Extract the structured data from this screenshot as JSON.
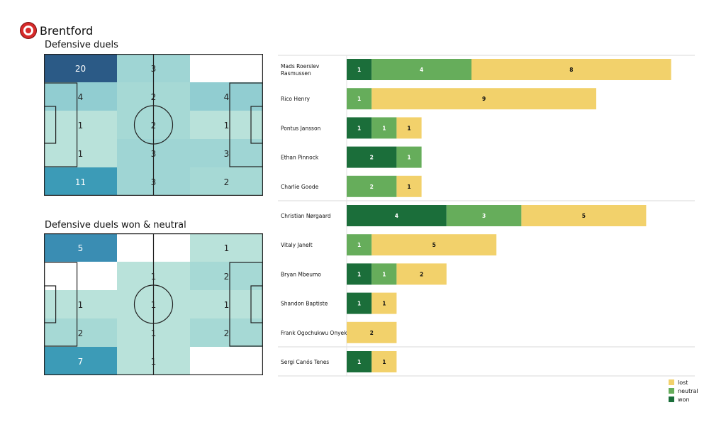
{
  "team": {
    "name": "Brentford",
    "logo_icon": "brentford-crest-icon"
  },
  "colors": {
    "won": "#1b6e3a",
    "neutral": "#66ad5b",
    "lost": "#f2d16b"
  },
  "pitches": [
    {
      "title": "Defensive duels",
      "grid": [
        [
          20,
          3,
          0
        ],
        [
          4,
          2,
          4
        ],
        [
          1,
          2,
          1
        ],
        [
          1,
          3,
          3
        ],
        [
          11,
          3,
          2
        ]
      ],
      "labels": [
        [
          "20",
          "3",
          ""
        ],
        [
          "4",
          "2",
          "4"
        ],
        [
          "1",
          "2",
          "1"
        ],
        [
          "1",
          "3",
          "3"
        ],
        [
          "11",
          "3",
          "2"
        ]
      ]
    },
    {
      "title": "Defensive duels won & neutral",
      "grid": [
        [
          5,
          0,
          1
        ],
        [
          0,
          1,
          2
        ],
        [
          1,
          1,
          1
        ],
        [
          2,
          1,
          2
        ],
        [
          7,
          1,
          0
        ]
      ],
      "labels": [
        [
          "5",
          "",
          "1"
        ],
        [
          "",
          "1",
          "2"
        ],
        [
          "1",
          "1",
          "1"
        ],
        [
          "2",
          "1",
          "2"
        ],
        [
          "7",
          "1",
          ""
        ]
      ]
    }
  ],
  "chart_data": {
    "type": "bar",
    "orientation": "horizontal",
    "stacked": true,
    "categories": [
      "Mads Roerslev Rasmussen",
      "Rico Henry",
      "Pontus Jansson",
      "Ethan Pinnock",
      "Charlie Goode",
      "Christian Nørgaard",
      "Vitaly Janelt",
      "Bryan Mbeumo",
      "Shandon Baptiste",
      "Frank Ogochukwu Onyeka",
      "Sergi Canós Tenes"
    ],
    "series": [
      {
        "name": "won",
        "values": [
          1,
          0,
          1,
          2,
          0,
          4,
          0,
          1,
          1,
          0,
          1
        ]
      },
      {
        "name": "neutral",
        "values": [
          4,
          1,
          1,
          1,
          2,
          3,
          1,
          1,
          0,
          0,
          0
        ]
      },
      {
        "name": "lost",
        "values": [
          8,
          9,
          1,
          0,
          1,
          5,
          5,
          2,
          1,
          2,
          1
        ]
      }
    ],
    "legend": {
      "position": "bottom-right",
      "entries": [
        "lost",
        "neutral",
        "won"
      ]
    }
  }
}
